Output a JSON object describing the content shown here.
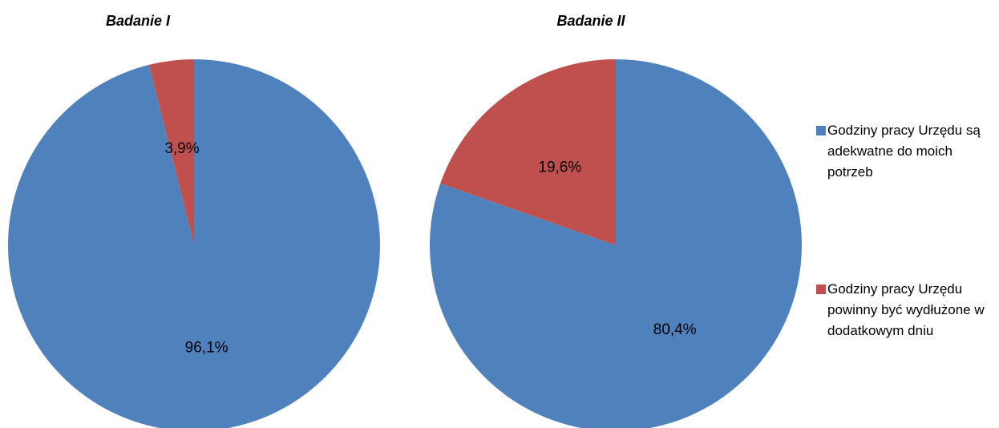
{
  "colors": {
    "series_a": "#4F81BD",
    "series_b": "#C0504D"
  },
  "chart_data": [
    {
      "type": "pie",
      "title": "Badanie I",
      "categories": [
        "Godziny pracy Urzędu są adekwatne do moich potrzeb",
        "Godziny pracy Urzędu powinny być wydłużone w dodatkowym dniu"
      ],
      "values": [
        96.1,
        3.9
      ],
      "labels": [
        "96,1%",
        "3,9%"
      ]
    },
    {
      "type": "pie",
      "title": "Badanie II",
      "categories": [
        "Godziny pracy Urzędu są adekwatne do moich potrzeb",
        "Godziny pracy Urzędu powinny być wydłużone w dodatkowym dniu"
      ],
      "values": [
        80.4,
        19.6
      ],
      "labels": [
        "80,4%",
        "19,6%"
      ]
    }
  ],
  "legend": {
    "position": "right",
    "items": [
      {
        "label": "Godziny pracy Urzędu są adekwatne do moich potrzeb",
        "color": "#4F81BD"
      },
      {
        "label": "Godziny pracy Urzędu powinny być wydłużone w dodatkowym dniu",
        "color": "#C0504D"
      }
    ]
  }
}
